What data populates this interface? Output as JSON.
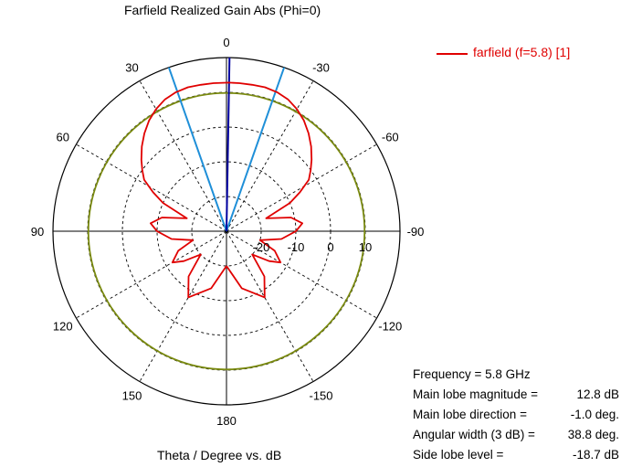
{
  "title": "Farfield Realized Gain Abs (Phi=0)",
  "xlabel": "Theta / Degree vs. dB",
  "legend": {
    "label": "farfield (f=5.8) [1]"
  },
  "info": [
    {
      "label": "Frequency = 5.8 GHz",
      "value": ""
    },
    {
      "label": "Main lobe magnitude =",
      "value": "12.8 dB"
    },
    {
      "label": "Main lobe direction =",
      "value": "-1.0 deg."
    },
    {
      "label": "Angular width (3 dB) =",
      "value": "38.8 deg."
    },
    {
      "label": "Side lobe level =",
      "value": "-18.7 dB"
    }
  ],
  "chart_data": {
    "type": "polar-line",
    "title": "Farfield Realized Gain Abs (Phi=0)",
    "xlabel": "Theta / Degree vs. dB",
    "angle_tick_labels": [
      "0",
      "-30",
      "-60",
      "-90",
      "-120",
      "-150",
      "180",
      "150",
      "120",
      "90",
      "60",
      "30"
    ],
    "angle_ticks_deg": [
      0,
      -30,
      -60,
      -90,
      -120,
      -150,
      180,
      150,
      120,
      90,
      60,
      30
    ],
    "radial_tick_labels": [
      "-20",
      "-10",
      "0",
      "10"
    ],
    "radial_ticks_db": [
      -20,
      -10,
      0,
      10
    ],
    "radial_range_db": [
      -30,
      20
    ],
    "grid": true,
    "legend_position": "top-right",
    "colors": {
      "pattern": "#e00000",
      "beamwidth": "#1f8fd8",
      "main_lobe": "#0000a0",
      "half_power_circle": "#7a8a10"
    },
    "series": [
      {
        "name": "farfield (f=5.8) [1]",
        "theta_deg": [
          -180,
          -165,
          -150,
          -140,
          -132,
          -125,
          -120,
          -112,
          -105,
          -98,
          -90,
          -84,
          -78,
          -72,
          -66,
          -62,
          -58,
          -54,
          -50,
          -45,
          -40,
          -35,
          -30,
          -25,
          -20,
          -15,
          -10,
          -5,
          -1,
          5,
          10,
          15,
          20,
          25,
          30,
          35,
          40,
          45,
          50,
          54,
          58,
          62,
          66,
          72,
          78,
          84,
          90,
          98,
          105,
          112,
          120,
          125,
          132,
          140,
          150,
          165,
          180
        ],
        "gain_db": [
          -20,
          -13,
          -8,
          -13,
          -20,
          -15,
          -12,
          -15,
          -20,
          -14,
          -10,
          -8,
          -11,
          -18,
          -10,
          -6,
          -2,
          0,
          2,
          4.5,
          6.8,
          8.9,
          10.6,
          11.9,
          12.6,
          12.9,
          12.8,
          12.8,
          12.8,
          12.8,
          12.8,
          12.9,
          12.6,
          11.9,
          10.6,
          8.9,
          6.8,
          4.5,
          2,
          0,
          -2,
          -6,
          -10,
          -18,
          -11,
          -8,
          -10,
          -14,
          -20,
          -15,
          -12,
          -15,
          -20,
          -13,
          -8,
          -13,
          -20
        ]
      }
    ],
    "main_lobe_direction_deg": -1.0,
    "beamwidth_lines_deg": [
      -19.4,
      19.4
    ],
    "half_power_circle_db": 9.8
  }
}
